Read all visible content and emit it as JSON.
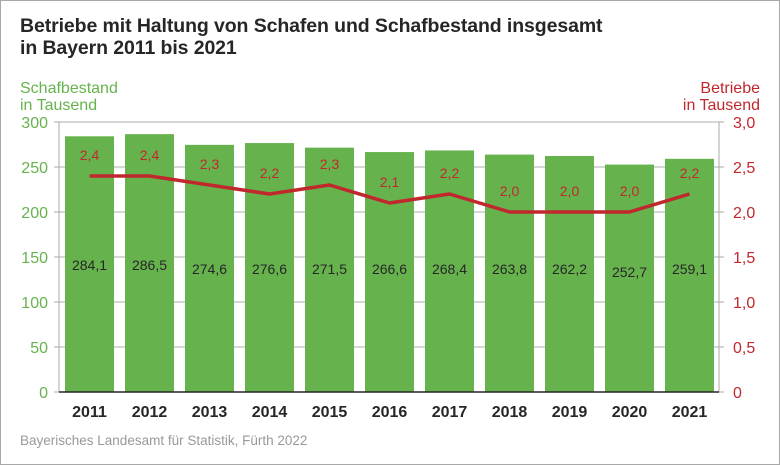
{
  "chart_data": {
    "type": "bar",
    "title_lines": [
      "Betriebe mit Haltung von Schafen und Schafbestand insgesamt",
      "in Bayern 2011 bis 2021"
    ],
    "categories": [
      "2011",
      "2012",
      "2013",
      "2014",
      "2015",
      "2016",
      "2017",
      "2018",
      "2019",
      "2020",
      "2021"
    ],
    "series": [
      {
        "name": "Schafbestand in Tausend",
        "type": "bar",
        "axis": "left",
        "color": "#66b34d",
        "values": [
          284.1,
          286.5,
          274.6,
          276.6,
          271.5,
          266.6,
          268.4,
          263.8,
          262.2,
          252.7,
          259.1
        ],
        "labels": [
          "284,1",
          "286,5",
          "274,6",
          "276,6",
          "271,5",
          "266,6",
          "268,4",
          "263,8",
          "262,2",
          "252,7",
          "259,1"
        ]
      },
      {
        "name": "Betriebe in Tausend",
        "type": "line",
        "axis": "right",
        "color": "#c0282d",
        "values": [
          2.4,
          2.4,
          2.3,
          2.2,
          2.3,
          2.1,
          2.2,
          2.0,
          2.0,
          2.0,
          2.2
        ],
        "labels": [
          "2,4",
          "2,4",
          "2,3",
          "2,2",
          "2,3",
          "2,1",
          "2,2",
          "2,0",
          "2,0",
          "2,0",
          "2,2"
        ]
      }
    ],
    "left_axis": {
      "label_lines": [
        "Schafbestand",
        "in Tausend"
      ],
      "ylim": [
        0,
        300
      ],
      "ticks": [
        0,
        50,
        100,
        150,
        200,
        250,
        300
      ],
      "tick_labels": [
        "0",
        "50",
        "100",
        "150",
        "200",
        "250",
        "300"
      ],
      "color": "#66b34d"
    },
    "right_axis": {
      "label_lines": [
        "Betriebe",
        "in Tausend"
      ],
      "ylim": [
        0,
        3.0
      ],
      "ticks": [
        0,
        0.5,
        1.0,
        1.5,
        2.0,
        2.5,
        3.0
      ],
      "tick_labels": [
        "0",
        "0,5",
        "1,0",
        "1,5",
        "2,0",
        "2,5",
        "3,0"
      ],
      "color": "#c0282d"
    },
    "grid": true,
    "legend": "none",
    "source": "Bayerisches Landesamt für Statistik, Fürth 2022"
  }
}
